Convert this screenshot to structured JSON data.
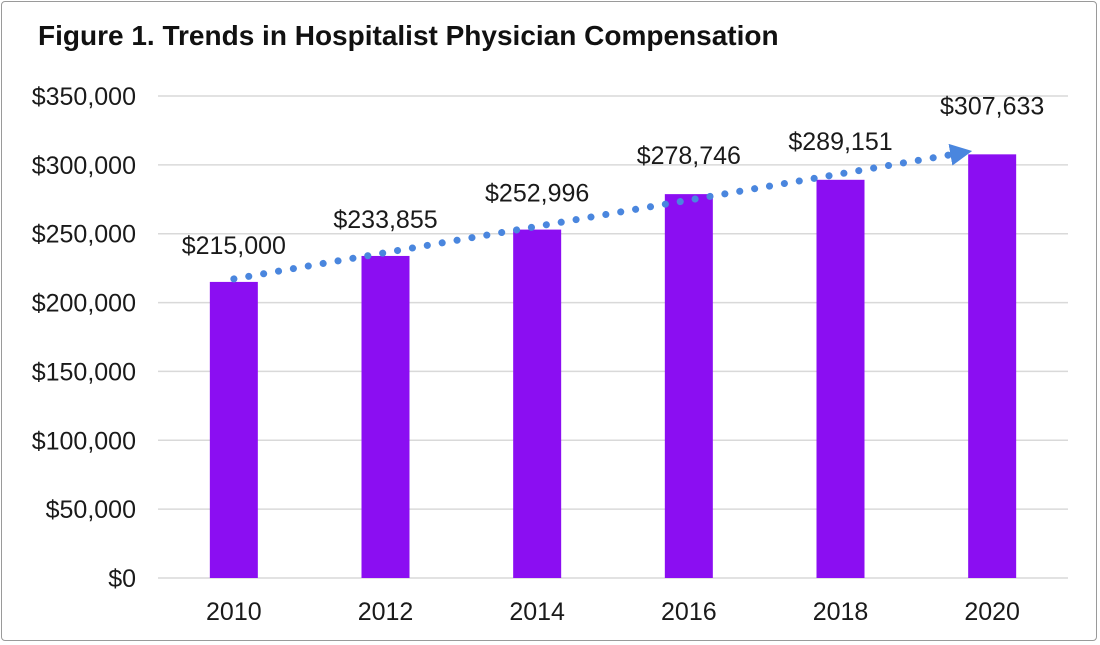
{
  "chart_data": {
    "type": "bar",
    "title": "Figure 1.  Trends in Hospitalist Physician Compensation",
    "categories": [
      "2010",
      "2012",
      "2014",
      "2016",
      "2018",
      "2020"
    ],
    "values": [
      215000,
      233855,
      252996,
      278746,
      289151,
      307633
    ],
    "data_labels": [
      "$215,000",
      "$233,855",
      "$252,996",
      "$278,746",
      "$289,151",
      "$307,633"
    ],
    "y_ticks": [
      0,
      50000,
      100000,
      150000,
      200000,
      250000,
      300000,
      350000
    ],
    "y_tick_labels": [
      "$0",
      "$50,000",
      "$100,000",
      "$150,000",
      "$200,000",
      "$250,000",
      "$300,000",
      "$350,000"
    ],
    "ylim": [
      0,
      350000
    ],
    "xlabel": "",
    "ylabel": "",
    "grid": true,
    "legend": "none",
    "trend": {
      "style": "dotted-arrow",
      "from": 215000,
      "to": 307633
    },
    "colors": {
      "bar": "#8b0ef2",
      "trend": "#4a86de",
      "grid": "#d9d9d9",
      "text": "#1a1a1a"
    }
  }
}
